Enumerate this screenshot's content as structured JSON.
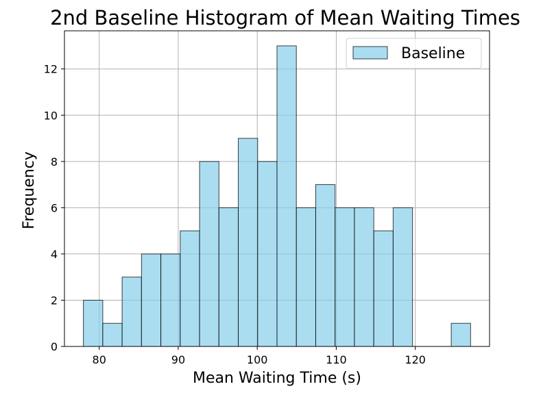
{
  "chart_data": {
    "type": "bar",
    "subtype": "histogram",
    "title": "2nd Baseline Histogram of Mean Waiting Times",
    "xlabel": "Mean Waiting Time (s)",
    "ylabel": "Frequency",
    "xlim": [
      75.6,
      129.4
    ],
    "ylim": [
      0,
      13.65
    ],
    "xticks": [
      80,
      90,
      100,
      110,
      120
    ],
    "yticks": [
      0,
      2,
      4,
      6,
      8,
      10,
      12
    ],
    "grid": true,
    "legend": {
      "position": "top-right",
      "entries": [
        "Baseline"
      ]
    },
    "series": [
      {
        "name": "Baseline",
        "color": "#87CEEB",
        "edgecolor": "#000000",
        "bin_start": 78.0,
        "bin_width": 2.45,
        "values": [
          2,
          1,
          3,
          4,
          4,
          5,
          8,
          6,
          9,
          8,
          13,
          6,
          7,
          6,
          6,
          5,
          6,
          0,
          0,
          1
        ]
      }
    ]
  }
}
